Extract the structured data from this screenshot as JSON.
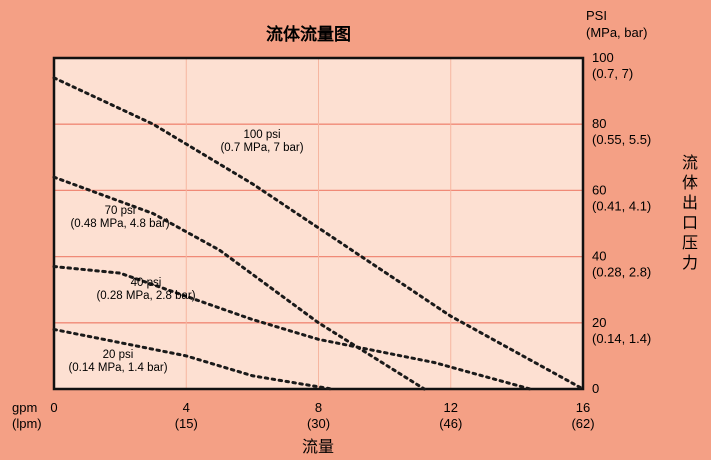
{
  "chart_data": {
    "type": "line",
    "title": "流体流量图",
    "xlabel": "流量",
    "ylabel": "流体出口压力",
    "x_unit_primary": "gpm",
    "x_unit_secondary": "(lpm)",
    "y_unit_primary": "PSI",
    "y_unit_secondary": "(MPa, bar)",
    "xlim": [
      0,
      16
    ],
    "ylim": [
      0,
      100
    ],
    "x_ticks": [
      {
        "value": 0,
        "primary": "0",
        "secondary": ""
      },
      {
        "value": 4,
        "primary": "4",
        "secondary": "(15)"
      },
      {
        "value": 8,
        "primary": "8",
        "secondary": "(30)"
      },
      {
        "value": 12,
        "primary": "12",
        "secondary": "(46)"
      },
      {
        "value": 16,
        "primary": "16",
        "secondary": "(62)"
      }
    ],
    "y_ticks": [
      {
        "value": 0,
        "primary": "0",
        "secondary": ""
      },
      {
        "value": 20,
        "primary": "20",
        "secondary": "(0.14, 1.4)"
      },
      {
        "value": 40,
        "primary": "40",
        "secondary": "(0.28, 2.8)"
      },
      {
        "value": 60,
        "primary": "60",
        "secondary": "(0.41, 4.1)"
      },
      {
        "value": 80,
        "primary": "80",
        "secondary": "(0.55, 5.5)"
      },
      {
        "value": 100,
        "primary": "100",
        "secondary": "(0.7, 7)"
      }
    ],
    "grid": true,
    "series": [
      {
        "name": "100 psi (0.7 MPa, 7 bar)",
        "label_line1": "100 psi",
        "label_line2": "(0.7 MPa, 7 bar)",
        "x": [
          0,
          3,
          6,
          9,
          12,
          16
        ],
        "y": [
          94,
          80,
          62,
          42,
          22,
          0
        ]
      },
      {
        "name": "70 psi (0.48 MPa, 4.8 bar)",
        "label_line1": "70 psi",
        "label_line2": "(0.48 MPa, 4.8 bar)",
        "x": [
          0,
          3,
          5,
          8,
          11.2
        ],
        "y": [
          64,
          53,
          42,
          20,
          0
        ]
      },
      {
        "name": "40 psi (0.28 MPa, 2.8 bar)",
        "label_line1": "40 psi",
        "label_line2": "(0.28 MPa, 2.8 bar)",
        "x": [
          0,
          2,
          4,
          6,
          8,
          11.5,
          14.4
        ],
        "y": [
          37,
          35,
          28,
          21,
          15,
          8,
          0
        ]
      },
      {
        "name": "20 psi (0.14 MPa, 1.4 bar)",
        "label_line1": "20 psi",
        "label_line2": "(0.14 MPa, 1.4 bar)",
        "x": [
          0,
          2,
          4,
          6,
          8.4
        ],
        "y": [
          18,
          14,
          10,
          4,
          0
        ]
      }
    ],
    "colors": {
      "background": "#f4a085",
      "plot_area": "#fde0d2",
      "grid": "#f08a77",
      "series": "#1a1a1a"
    }
  }
}
